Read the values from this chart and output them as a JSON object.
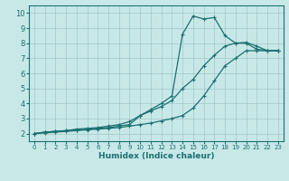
{
  "xlabel": "Humidex (Indice chaleur)",
  "background_color": "#c8e8e8",
  "grid_color": "#b8d8d8",
  "line_color": "#1a7070",
  "xlim": [
    -0.5,
    23.5
  ],
  "ylim": [
    1.5,
    10.5
  ],
  "xticks": [
    0,
    1,
    2,
    3,
    4,
    5,
    6,
    7,
    8,
    9,
    10,
    11,
    12,
    13,
    14,
    15,
    16,
    17,
    18,
    19,
    20,
    21,
    22,
    23
  ],
  "yticks": [
    2,
    3,
    4,
    5,
    6,
    7,
    8,
    9,
    10
  ],
  "series1_x": [
    0,
    1,
    2,
    3,
    4,
    5,
    6,
    7,
    8,
    9,
    10,
    11,
    12,
    13,
    14,
    15,
    16,
    17,
    18,
    19,
    20,
    21,
    22,
    23
  ],
  "series1_y": [
    2.0,
    2.1,
    2.15,
    2.2,
    2.25,
    2.3,
    2.35,
    2.4,
    2.5,
    2.6,
    3.2,
    3.6,
    4.0,
    4.5,
    8.6,
    9.8,
    9.6,
    9.7,
    8.5,
    8.0,
    8.0,
    7.6,
    7.5,
    7.5
  ],
  "series2_x": [
    0,
    1,
    2,
    3,
    4,
    5,
    6,
    7,
    8,
    9,
    10,
    11,
    12,
    13,
    14,
    15,
    16,
    17,
    18,
    19,
    20,
    21,
    22,
    23
  ],
  "series2_y": [
    2.0,
    2.1,
    2.15,
    2.2,
    2.3,
    2.35,
    2.4,
    2.5,
    2.6,
    2.8,
    3.2,
    3.5,
    3.8,
    4.2,
    5.0,
    5.6,
    6.5,
    7.2,
    7.8,
    8.0,
    8.05,
    7.8,
    7.5,
    7.5
  ],
  "series3_x": [
    0,
    1,
    2,
    3,
    4,
    5,
    6,
    7,
    8,
    9,
    10,
    11,
    12,
    13,
    14,
    15,
    16,
    17,
    18,
    19,
    20,
    21,
    22,
    23
  ],
  "series3_y": [
    2.0,
    2.05,
    2.1,
    2.15,
    2.2,
    2.25,
    2.3,
    2.35,
    2.4,
    2.5,
    2.6,
    2.7,
    2.85,
    3.0,
    3.2,
    3.7,
    4.5,
    5.5,
    6.5,
    7.0,
    7.5,
    7.5,
    7.5,
    7.5
  ]
}
